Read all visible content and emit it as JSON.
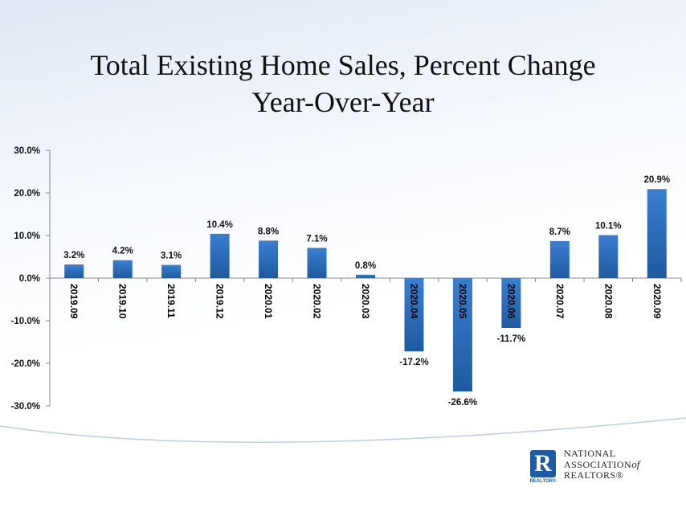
{
  "chart_data": {
    "type": "bar",
    "title_lines": [
      "Total Existing Home Sales, Percent Change",
      "Year-Over-Year"
    ],
    "categories": [
      "2019.09",
      "2019.10",
      "2019.11",
      "2019.12",
      "2020.01",
      "2020.02",
      "2020.03",
      "2020.04",
      "2020.05",
      "2020.06",
      "2020.07",
      "2020.08",
      "2020.09"
    ],
    "values": [
      3.2,
      4.2,
      3.1,
      10.4,
      8.8,
      7.1,
      0.8,
      -17.2,
      -26.6,
      -11.7,
      8.7,
      10.1,
      20.9
    ],
    "data_labels": [
      "3.2%",
      "4.2%",
      "3.1%",
      "10.4%",
      "8.8%",
      "7.1%",
      "0.8%",
      "-17.2%",
      "-26.6%",
      "-11.7%",
      "8.7%",
      "10.1%",
      "20.9%"
    ],
    "yticks": [
      30,
      20,
      10,
      0,
      -10,
      -20,
      -30
    ],
    "ytick_labels": [
      "30.0%",
      "20.0%",
      "10.0%",
      "0.0%",
      "-10.0%",
      "-20.0%",
      "-30.0%"
    ],
    "ylim": [
      -30,
      30
    ],
    "xlabel": "",
    "ylabel": "",
    "legend": "none",
    "bar_color": "#2e6fc4"
  },
  "logo": {
    "letter": "R",
    "sub": "REALTOR®",
    "line1": "NATIONAL",
    "line2": "ASSOCIATION",
    "line2_suffix": "of",
    "line3": "REALTORS®"
  },
  "colors": {
    "bar_top": "#3a7fd0",
    "bar_bottom": "#1f5a9f",
    "axis": "#888888"
  }
}
